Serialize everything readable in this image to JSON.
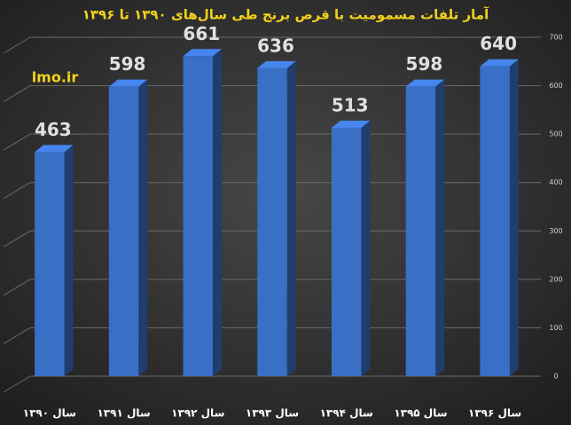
{
  "chart_data": {
    "type": "bar",
    "title": "آمار تلفات مسمومیت با قرص برنج طی سال‌های ۱۳۹۰ تا ۱۳۹۶",
    "annotation": "lmo.ir",
    "categories": [
      "سال ۱۳۹۰",
      "سال ۱۳۹۱",
      "سال ۱۳۹۲",
      "سال ۱۳۹۳",
      "سال ۱۳۹۴",
      "سال ۱۳۹۵",
      "سال ۱۳۹۶"
    ],
    "values": [
      463,
      598,
      661,
      636,
      513,
      598,
      640
    ],
    "color": "#3a6fc6",
    "ylim": [
      0,
      700
    ],
    "yticks": [
      0,
      100,
      200,
      300,
      400,
      500,
      600,
      700
    ],
    "grid": true,
    "y_axis_side": "right"
  }
}
